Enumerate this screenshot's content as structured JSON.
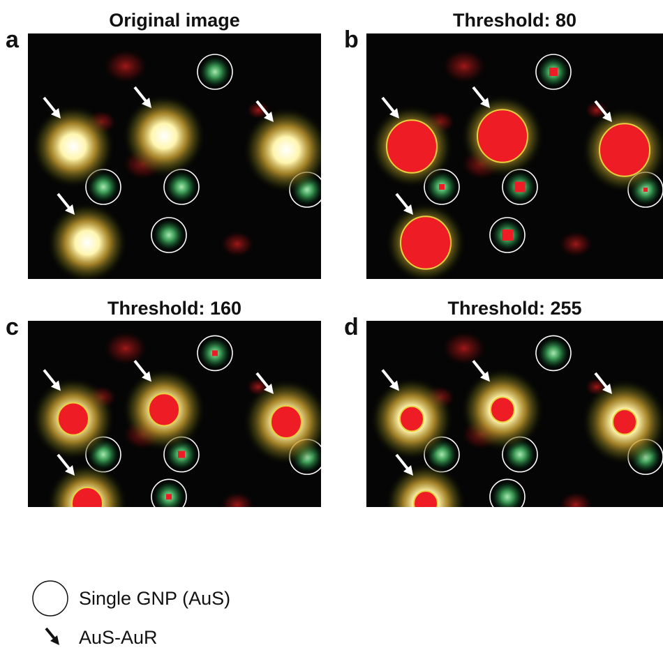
{
  "panels": [
    {
      "letter": "a",
      "title": "Original image"
    },
    {
      "letter": "b",
      "title": "Threshold: 80"
    },
    {
      "letter": "c",
      "title": "Threshold: 160"
    },
    {
      "letter": "d",
      "title": "Threshold: 255"
    }
  ],
  "legend": [
    "Single GNP (AuS)",
    "AuS-AuR"
  ]
}
